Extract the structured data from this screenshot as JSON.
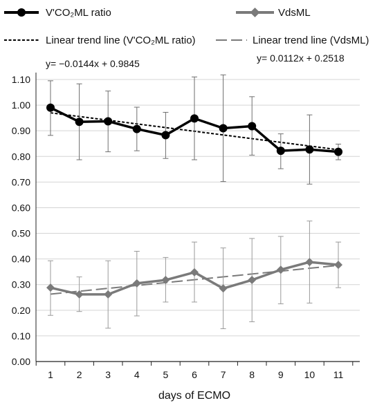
{
  "chart_data": {
    "type": "line",
    "xlabel": "days of ECMO",
    "ylabel": "",
    "x": [
      1,
      2,
      3,
      4,
      5,
      6,
      7,
      8,
      9,
      10,
      11
    ],
    "ylim": [
      0,
      1.1
    ],
    "yticks": [
      "0.00",
      "0.10",
      "0.20",
      "0.30",
      "0.40",
      "0.50",
      "0.60",
      "0.70",
      "0.80",
      "0.90",
      "1.00",
      "1.10"
    ],
    "xticks": [
      "1",
      "2",
      "3",
      "4",
      "5",
      "6",
      "7",
      "8",
      "9",
      "10",
      "11"
    ],
    "grid": "horizontal",
    "legend_position": "top",
    "series": [
      {
        "name": "V'CO2ML ratio",
        "legend_label": "V'CO₂ML ratio",
        "color": "#000000",
        "marker": "circle",
        "values": [
          0.99,
          0.935,
          0.937,
          0.907,
          0.883,
          0.948,
          0.91,
          0.918,
          0.822,
          0.827,
          0.818
        ],
        "err_upper": [
          1.095,
          1.083,
          1.055,
          0.992,
          0.972,
          1.11,
          1.118,
          1.033,
          0.888,
          0.962,
          0.848
        ],
        "err_lower": [
          0.882,
          0.787,
          0.818,
          0.822,
          0.792,
          0.787,
          0.702,
          0.805,
          0.752,
          0.692,
          0.787
        ]
      },
      {
        "name": "VdsML",
        "legend_label": "VdsML",
        "color": "#7a7a7a",
        "marker": "diamond",
        "values": [
          0.288,
          0.262,
          0.262,
          0.305,
          0.318,
          0.348,
          0.285,
          0.318,
          0.358,
          0.388,
          0.377
        ],
        "err_upper": [
          0.393,
          0.33,
          0.393,
          0.43,
          0.406,
          0.466,
          0.443,
          0.48,
          0.488,
          0.548,
          0.466
        ],
        "err_lower": [
          0.18,
          0.195,
          0.13,
          0.178,
          0.232,
          0.232,
          0.128,
          0.155,
          0.225,
          0.228,
          0.288
        ]
      }
    ],
    "trendlines": [
      {
        "name": "Linear trend line (V'CO2ML ratio)",
        "legend_label": "Linear trend line (V'CO₂ML ratio)",
        "style": "dotted",
        "color": "#000000",
        "slope": -0.0144,
        "intercept": 0.9845,
        "equation": "y= −0.0144x + 0.9845"
      },
      {
        "name": "Linear trend line (VdsML)",
        "legend_label": "Linear trend line (VdsML)",
        "style": "dashed",
        "color": "#7a7a7a",
        "slope": 0.0112,
        "intercept": 0.2518,
        "equation": "y= 0.0112x + 0.2518"
      }
    ]
  }
}
